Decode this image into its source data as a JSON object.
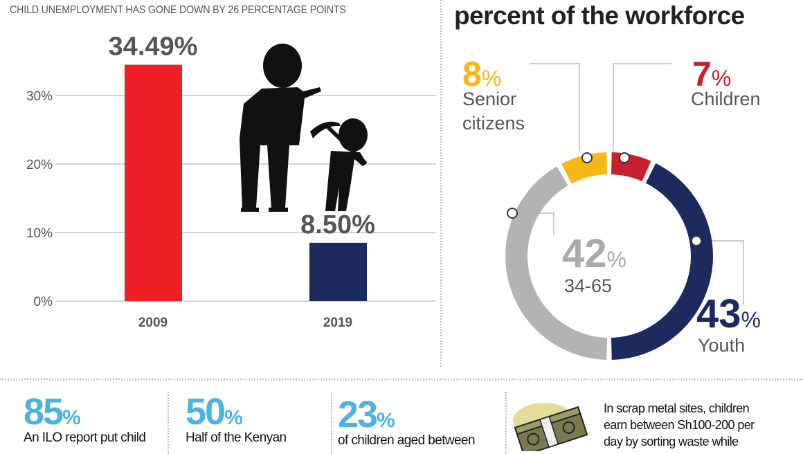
{
  "left_panel": {
    "subtitle": "CHILD UNEMPLOYMENT HAS GONE DOWN BY 26 PERCENTAGE POINTS"
  },
  "right_panel": {
    "title": "percent of the workforce"
  },
  "chart_data": [
    {
      "type": "bar",
      "title": "",
      "categories": [
        "2009",
        "2019"
      ],
      "values": [
        34.49,
        8.5
      ],
      "data_labels": [
        "34.49%",
        "8.50%"
      ],
      "colors": [
        "#ee1f25",
        "#1c2a5e"
      ],
      "yticks": [
        "0%",
        "10%",
        "20%",
        "30%"
      ],
      "ylim": [
        0,
        35
      ],
      "grid": true
    },
    {
      "type": "pie",
      "style": "donut",
      "slices": [
        {
          "label": "Children",
          "value": 7,
          "display": "7",
          "color": "#c8202f"
        },
        {
          "label": "Youth",
          "value": 43,
          "display": "43",
          "color": "#1c2a5e"
        },
        {
          "label": "34-65",
          "value": 42,
          "display": "42",
          "color": "#b3b3b3"
        },
        {
          "label": "Senior citizens",
          "value": 8,
          "display": "8",
          "color": "#f7b715"
        }
      ],
      "percent_sign": "%",
      "senior_lines": [
        "Senior",
        "citizens"
      ]
    }
  ],
  "bottom": {
    "stats": [
      {
        "value": "85",
        "unit": "%",
        "text": "An ILO report put child"
      },
      {
        "value": "50",
        "unit": "%",
        "text": "Half of the Kenyan"
      },
      {
        "value": "23",
        "unit": "%",
        "text": "of children aged between"
      }
    ],
    "money_icon": "money-stack-icon",
    "money_text": [
      "In scrap metal sites, children",
      "earn between Sh100-200 per",
      "day by sorting waste while"
    ]
  }
}
